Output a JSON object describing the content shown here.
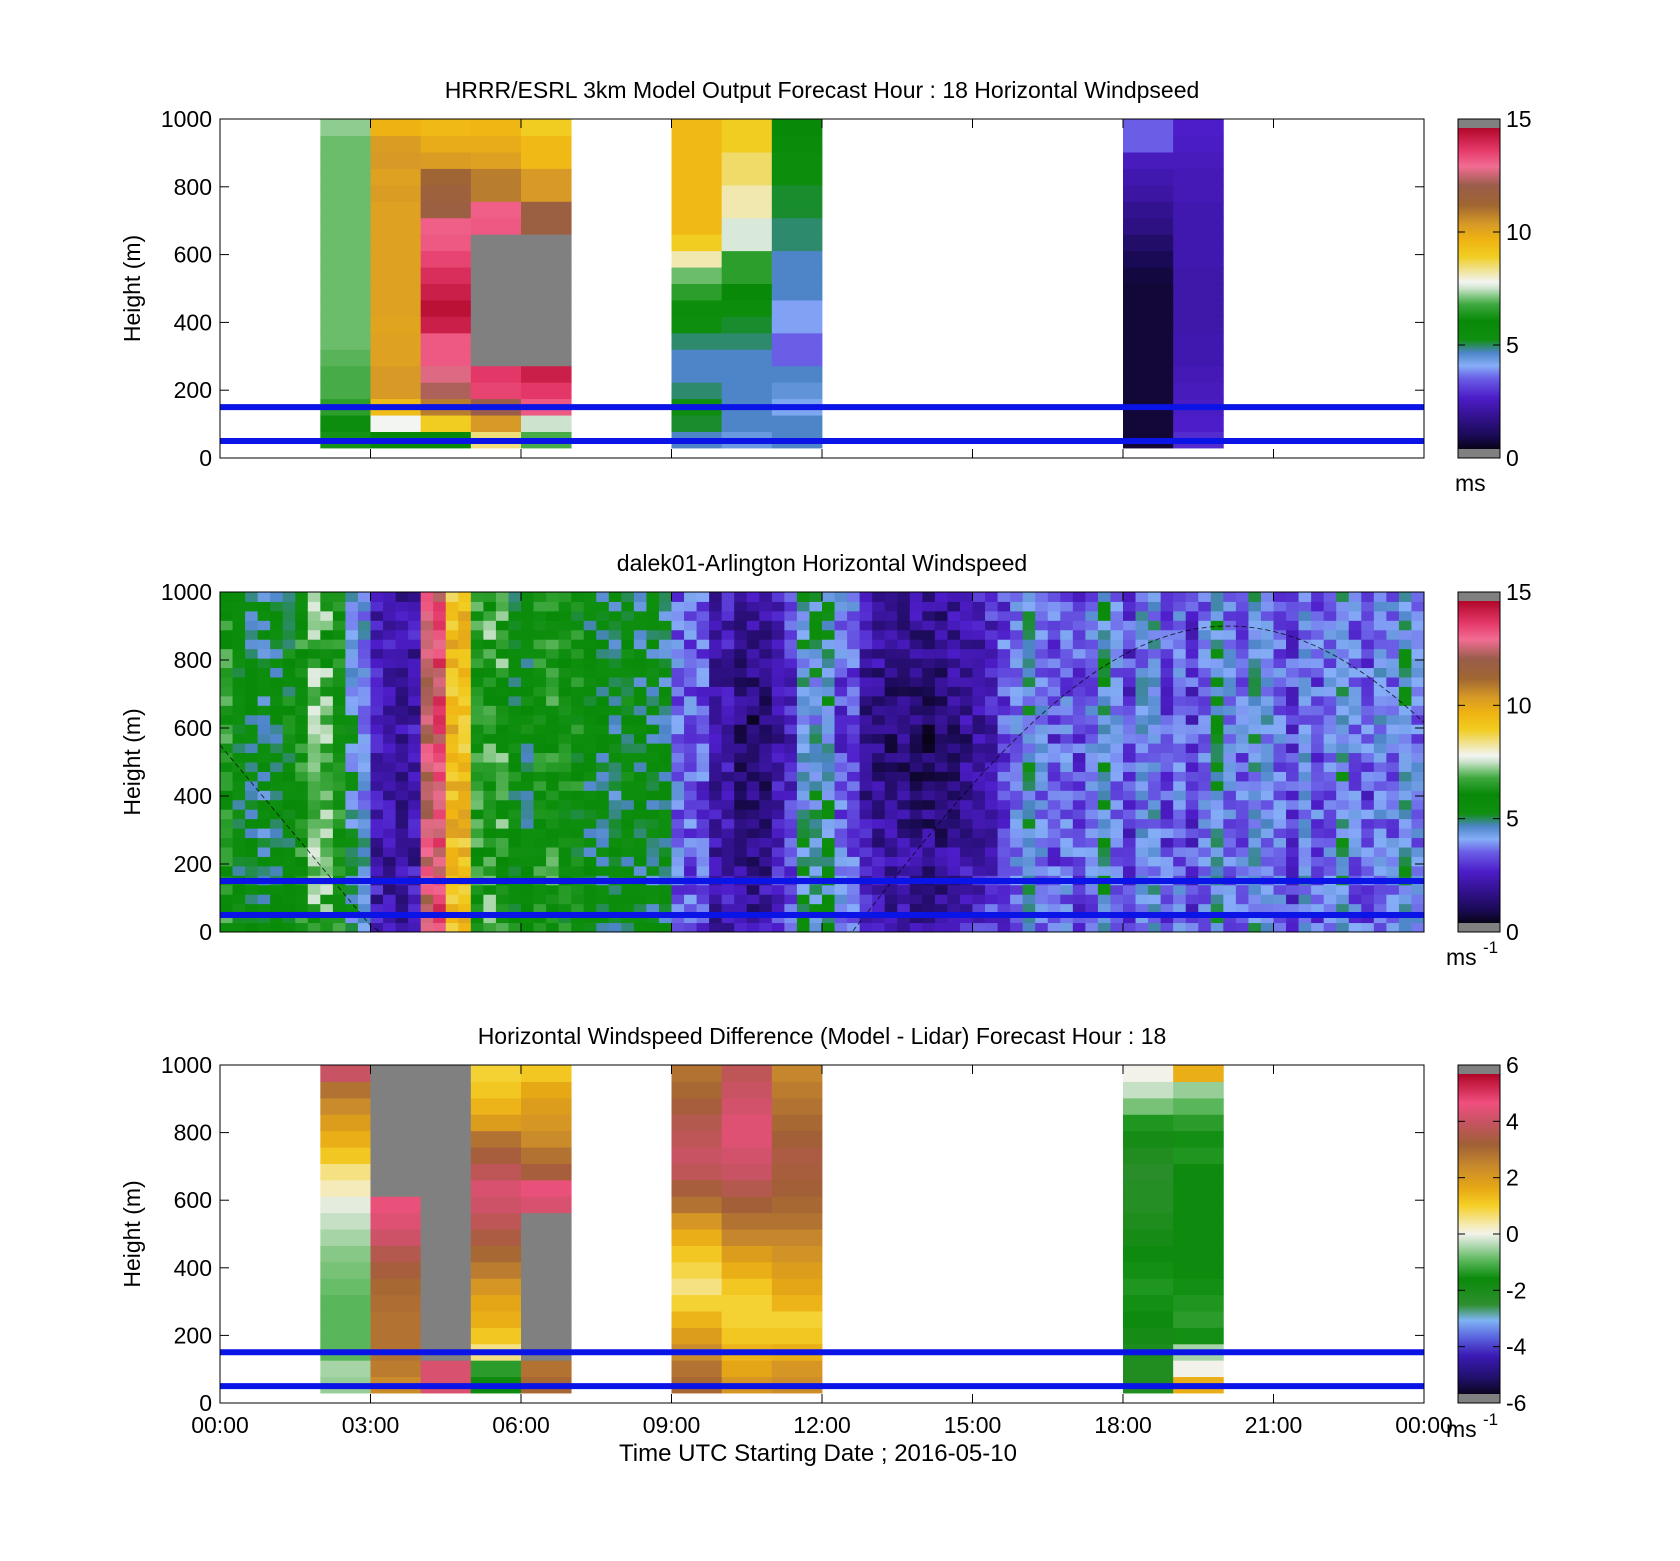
{
  "figure": {
    "xlabel": "Time UTC  Starting Date ; 2016-05-10",
    "x_tick_labels": [
      "00:00",
      "03:00",
      "06:00",
      "09:00",
      "12:00",
      "15:00",
      "18:00",
      "21:00",
      "00:00"
    ],
    "y_tick_labels": [
      "0",
      "200",
      "400",
      "600",
      "800",
      "1000"
    ],
    "ylabel": "Height (m)"
  },
  "chart_data": [
    {
      "type": "heatmap",
      "title": "HRRR/ESRL 3km Model Output   Forecast Hour : 18 Horizontal Windpseed",
      "ylabel": "Height (m)",
      "xlim_hours": [
        0,
        24
      ],
      "ylim": [
        0,
        1000
      ],
      "colorbar": {
        "min": 0,
        "max": 15,
        "ticks": [
          "0",
          "5",
          "10",
          "15"
        ],
        "unit": "ms",
        "unit_sup": "",
        "colormap": "speed"
      },
      "reference_lines_m": [
        50,
        150
      ],
      "line_color": "#0a14e6",
      "columns": [
        {
          "start_h": 2,
          "end_h": 3,
          "levels": [
            6.2,
            5.4,
            6.5,
            6.8,
            6.8,
            6.9,
            7.0,
            7.0,
            7.0,
            7.0,
            7.0,
            7.0,
            7.0,
            7.0,
            7.0,
            7.0,
            7.0,
            7.0,
            7.0,
            7.2
          ]
        },
        {
          "start_h": 3,
          "end_h": 4,
          "levels": [
            6.0,
            7.8,
            9.5,
            10.5,
            10.5,
            10.3,
            10.3,
            10.2,
            10.3,
            10.3,
            10.3,
            10.3,
            10.3,
            10.3,
            10.3,
            10.4,
            10.3,
            10.5,
            10.4,
            9.8
          ]
        },
        {
          "start_h": 4,
          "end_h": 5,
          "levels": [
            6.0,
            9.0,
            11.0,
            12.5,
            13.0,
            13.5,
            13.5,
            14.5,
            14.8,
            14.5,
            14.2,
            13.8,
            13.5,
            13.4,
            12.0,
            11.8,
            11.5,
            10.4,
            10.0,
            9.6
          ]
        },
        {
          "start_h": 5,
          "end_h": 6,
          "levels": [
            8.5,
            10.5,
            12.3,
            13.8,
            14.0,
            15.6,
            15.6,
            15.6,
            15.6,
            15.6,
            15.6,
            15.6,
            15.6,
            13.5,
            13.4,
            11.0,
            11.0,
            10.3,
            10.0,
            9.7
          ]
        },
        {
          "start_h": 6,
          "end_h": 7,
          "levels": [
            6.8,
            7.5,
            13.5,
            14.0,
            14.5,
            15.6,
            15.6,
            15.6,
            15.6,
            15.6,
            15.6,
            15.6,
            15.6,
            12.0,
            12.0,
            10.5,
            10.5,
            9.6,
            9.6,
            9.0
          ]
        },
        {
          "start_h": 9,
          "end_h": 10,
          "levels": [
            4.5,
            5.0,
            5.2,
            4.8,
            4.5,
            4.5,
            4.8,
            5.2,
            5.5,
            6.5,
            7.0,
            8.2,
            9.0,
            9.6,
            9.6,
            9.6,
            9.6,
            9.6,
            9.6,
            9.6
          ]
        },
        {
          "start_h": 10,
          "end_h": 11,
          "levels": [
            4.2,
            4.5,
            4.5,
            4.5,
            4.5,
            4.5,
            4.8,
            5.0,
            5.5,
            6.0,
            6.5,
            6.5,
            7.6,
            7.6,
            8.2,
            8.2,
            8.6,
            8.6,
            9.0,
            9.0
          ]
        },
        {
          "start_h": 11,
          "end_h": 12,
          "levels": [
            4.5,
            4.5,
            4.0,
            4.3,
            4.5,
            3.3,
            3.3,
            3.8,
            3.8,
            4.5,
            4.5,
            4.5,
            4.8,
            4.8,
            5.0,
            5.0,
            5.5,
            5.5,
            5.8,
            6.0
          ]
        },
        {
          "start_h": 18,
          "end_h": 19,
          "levels": [
            0.3,
            0.3,
            0.3,
            0.3,
            0.3,
            0.3,
            0.3,
            0.3,
            0.3,
            0.3,
            0.4,
            0.6,
            0.9,
            1.3,
            1.5,
            1.8,
            2.0,
            2.2,
            3.3,
            3.3
          ]
        },
        {
          "start_h": 19,
          "end_h": 20,
          "levels": [
            2.6,
            2.4,
            2.3,
            2.2,
            2.1,
            2.0,
            2.0,
            1.9,
            1.9,
            1.9,
            1.9,
            2.0,
            2.0,
            2.0,
            2.0,
            2.1,
            2.1,
            2.2,
            2.3,
            2.4
          ]
        }
      ]
    },
    {
      "type": "heatmap",
      "title": "dalek01-Arlington  Horizontal Windspeed",
      "ylabel": "Height (m)",
      "xlim_hours": [
        0,
        24
      ],
      "ylim": [
        0,
        1000
      ],
      "colorbar": {
        "min": 0,
        "max": 15,
        "ticks": [
          "0",
          "5",
          "10",
          "15"
        ],
        "unit": "ms",
        "unit_sup": "-1",
        "colormap": "speed"
      },
      "reference_lines_m": [
        50,
        150
      ],
      "line_color": "#0a14e6",
      "column_width_h": 0.25,
      "values": [
        6.2,
        5.4,
        5.2,
        5.0,
        5.0,
        5.6,
        6.0,
        6.8,
        6.8,
        6.0,
        4.4,
        4.0,
        2.0,
        1.9,
        1.8,
        1.9,
        12.8,
        13.5,
        9.5,
        9.6,
        6.2,
        6.6,
        6.5,
        5.6,
        5.4,
        6.0,
        6.2,
        5.8,
        5.8,
        5.3,
        5.2,
        5.0,
        5.4,
        5.1,
        5.0,
        5.0,
        3.4,
        3.2,
        3.0,
        2.0,
        2.0,
        1.9,
        1.8,
        2.0,
        2.6,
        3.2,
        4.8,
        5.0,
        5.2,
        3.8,
        3.8,
        2.4,
        2.2,
        2.0,
        2.0,
        1.9,
        1.8,
        1.8,
        2.0,
        2.4,
        2.6,
        2.8,
        3.0,
        3.5,
        4.2,
        3.6,
        3.0,
        3.4,
        3.0,
        3.5,
        4.8,
        3.6,
        2.8,
        3.8,
        4.0,
        3.0,
        3.5,
        2.8,
        3.5,
        4.6,
        3.6,
        3.4,
        4.2,
        3.9,
        3.4,
        2.9,
        3.8,
        3.2,
        3.5,
        4.4,
        3.4,
        3.0,
        3.8,
        3.5,
        4.4,
        3.6
      ]
    },
    {
      "type": "heatmap",
      "title": "Horizontal Windspeed Difference (Model - Lidar) Forecast Hour : 18",
      "ylabel": "Height (m)",
      "xlabel": "Time UTC  Starting Date ; 2016-05-10",
      "xlim_hours": [
        0,
        24
      ],
      "ylim": [
        0,
        1000
      ],
      "colorbar": {
        "min": -6,
        "max": 6,
        "ticks": [
          "-6",
          "-4",
          "-2",
          "0",
          "2",
          "4",
          "6"
        ],
        "unit": "ms",
        "unit_sup": "-1",
        "colormap": "diff"
      },
      "reference_lines_m": [
        50,
        150
      ],
      "line_color": "#0a14e6",
      "columns": [
        {
          "start_h": 2,
          "end_h": 3,
          "levels": [
            -0.6,
            -0.5,
            -1.0,
            -1.0,
            -1.0,
            -1.0,
            -0.9,
            -0.8,
            -0.7,
            -0.5,
            -0.3,
            -0.1,
            0.3,
            0.6,
            1.2,
            1.6,
            2.0,
            2.5,
            3.0,
            4.2
          ]
        },
        {
          "start_h": 3,
          "end_h": 4,
          "levels": [
            2.5,
            2.8,
            3.0,
            3.0,
            3.0,
            3.1,
            3.2,
            3.5,
            3.8,
            4.3,
            4.6,
            4.8,
            6.3,
            6.3,
            6.3,
            6.3,
            6.3,
            6.3,
            6.3,
            6.3
          ]
        },
        {
          "start_h": 4,
          "end_h": 5,
          "levels": [
            4.5,
            4.5,
            6.3,
            6.3,
            6.3,
            6.3,
            6.3,
            6.3,
            6.3,
            6.3,
            6.3,
            6.3,
            6.3,
            6.3,
            6.3,
            6.3,
            6.3,
            6.3,
            6.3,
            6.3
          ]
        },
        {
          "start_h": 5,
          "end_h": 6,
          "levels": [
            -1.8,
            -1.4,
            0.6,
            1.2,
            1.6,
            1.8,
            2.2,
            2.8,
            3.2,
            3.6,
            4.0,
            4.3,
            4.5,
            4.0,
            3.5,
            3.0,
            2.0,
            1.5,
            1.2,
            1.0
          ]
        },
        {
          "start_h": 6,
          "end_h": 7,
          "levels": [
            3.2,
            3.0,
            6.3,
            6.3,
            6.3,
            6.3,
            6.3,
            6.3,
            6.3,
            6.3,
            6.3,
            4.5,
            4.8,
            3.5,
            3.0,
            2.5,
            2.2,
            2.0,
            1.7,
            1.2
          ]
        },
        {
          "start_h": 9,
          "end_h": 10,
          "levels": [
            3.2,
            3.0,
            2.5,
            2.0,
            1.5,
            1.0,
            0.6,
            0.9,
            1.2,
            1.6,
            2.2,
            3.0,
            3.5,
            4.0,
            4.2,
            4.0,
            3.8,
            3.5,
            3.2,
            3.0
          ]
        },
        {
          "start_h": 10,
          "end_h": 11,
          "levels": [
            2.2,
            1.8,
            1.5,
            1.2,
            1.0,
            1.0,
            1.2,
            1.6,
            2.0,
            2.6,
            3.0,
            3.4,
            3.8,
            4.2,
            4.4,
            4.6,
            4.6,
            4.4,
            4.2,
            4.0
          ]
        },
        {
          "start_h": 11,
          "end_h": 12,
          "levels": [
            2.4,
            2.2,
            1.6,
            1.2,
            1.0,
            1.5,
            1.8,
            2.0,
            2.3,
            2.6,
            3.0,
            3.2,
            3.4,
            3.5,
            3.6,
            3.4,
            3.2,
            3.0,
            2.8,
            2.6
          ]
        },
        {
          "start_h": 18,
          "end_h": 19,
          "levels": [
            -2.3,
            -2.3,
            -2.2,
            -2.0,
            -1.8,
            -1.6,
            -1.5,
            -1.6,
            -1.8,
            -2.0,
            -2.2,
            -2.4,
            -2.4,
            -2.5,
            -2.3,
            -2.0,
            -1.5,
            -0.8,
            -0.3,
            0.0
          ]
        },
        {
          "start_h": 19,
          "end_h": 20,
          "levels": [
            1.6,
            0.0,
            -0.5,
            -1.6,
            -1.4,
            -1.5,
            -1.6,
            -1.8,
            -1.8,
            -1.8,
            -1.8,
            -1.8,
            -1.8,
            -1.8,
            -1.5,
            -1.6,
            -1.4,
            -1.0,
            -0.6,
            1.6
          ]
        }
      ]
    }
  ]
}
